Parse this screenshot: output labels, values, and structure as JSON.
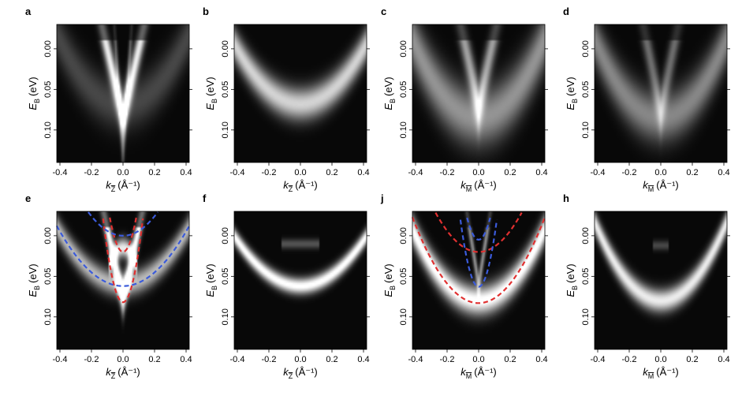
{
  "chart_data": [
    {
      "panel": "a",
      "type": "heatmap",
      "xlabel": "k",
      "x_sub": "Z",
      "x_unit": "(Å⁻¹)",
      "ylabel": "E",
      "y_sub": "B",
      "y_unit": "(eV)",
      "xlim": [
        -0.42,
        0.42
      ],
      "ylim": [
        -0.03,
        0.14
      ],
      "xticks": [
        "-0.4",
        "-0.2",
        "0.0",
        "0.2",
        "0.4"
      ],
      "yticks": [
        "0.00",
        "0.05",
        "0.10"
      ],
      "bands": [
        {
          "shape": "v",
          "kf": 0.1,
          "bottom": 0.085,
          "intensity": 0.9,
          "width": 0.025
        },
        {
          "shape": "v",
          "kf": 0.045,
          "bottom": 0.13,
          "intensity": 0.35,
          "width": 0.03
        },
        {
          "shape": "cup",
          "a": 0.5,
          "c": 0.07,
          "intensity": 0.25,
          "width": 0.03
        }
      ]
    },
    {
      "panel": "b",
      "type": "heatmap",
      "xlabel": "k",
      "x_sub": "Z",
      "x_unit": "(Å⁻¹)",
      "ylabel": "E",
      "y_sub": "B",
      "y_unit": "(eV)",
      "xlim": [
        -0.42,
        0.42
      ],
      "ylim": [
        -0.03,
        0.14
      ],
      "xticks": [
        "-0.4",
        "-0.2",
        "0.0",
        "0.2",
        "0.4"
      ],
      "yticks": [
        "0.00",
        "0.05",
        "0.10"
      ],
      "bands": [
        {
          "shape": "cup",
          "a": 0.42,
          "c": 0.068,
          "intensity": 0.8,
          "width": 0.02
        }
      ]
    },
    {
      "panel": "c",
      "type": "heatmap",
      "xlabel": "k",
      "x_sub": "M",
      "x_unit": "(Å⁻¹)",
      "ylabel": "E",
      "y_sub": "B",
      "y_unit": "(eV)",
      "xlim": [
        -0.42,
        0.42
      ],
      "ylim": [
        -0.03,
        0.14
      ],
      "xticks": [
        "-0.4",
        "-0.2",
        "0.0",
        "0.2",
        "0.4"
      ],
      "yticks": [
        "0.00",
        "0.05",
        "0.10"
      ],
      "bands": [
        {
          "shape": "cup",
          "a": 0.55,
          "c": 0.085,
          "intensity": 0.55,
          "width": 0.035
        },
        {
          "shape": "v",
          "kf": 0.08,
          "bottom": 0.07,
          "intensity": 0.6,
          "width": 0.03
        }
      ]
    },
    {
      "panel": "d",
      "type": "heatmap",
      "xlabel": "k",
      "x_sub": "M",
      "x_unit": "(Å⁻¹)",
      "ylabel": "E",
      "y_sub": "B",
      "y_unit": "(eV)",
      "xlim": [
        -0.42,
        0.42
      ],
      "ylim": [
        -0.03,
        0.14
      ],
      "xticks": [
        "-0.4",
        "-0.2",
        "0.0",
        "0.2",
        "0.4"
      ],
      "yticks": [
        "0.00",
        "0.05",
        "0.10"
      ],
      "bands": [
        {
          "shape": "cup",
          "a": 0.55,
          "c": 0.085,
          "intensity": 0.5,
          "width": 0.03
        },
        {
          "shape": "v",
          "kf": 0.08,
          "bottom": 0.075,
          "intensity": 0.4,
          "width": 0.03
        }
      ]
    },
    {
      "panel": "e",
      "type": "heatmap",
      "xlabel": "k",
      "x_sub": "Z",
      "x_unit": "(Å⁻¹)",
      "ylabel": "E",
      "y_sub": "B",
      "y_unit": "(eV)",
      "xlim": [
        -0.42,
        0.42
      ],
      "ylim": [
        -0.03,
        0.14
      ],
      "xticks": [
        "-0.4",
        "-0.2",
        "0.0",
        "0.2",
        "0.4"
      ],
      "yticks": [
        "0.00",
        "0.05",
        "0.10"
      ],
      "bands": [
        {
          "shape": "v",
          "kf": 0.09,
          "bottom": 0.08,
          "intensity": 1.0,
          "width": 0.02
        },
        {
          "shape": "cup",
          "a": 0.4,
          "c": 0.06,
          "intensity": 0.7,
          "width": 0.015
        },
        {
          "shape": "cap",
          "x0": 0.0,
          "y0": 0.015,
          "half": 0.09,
          "intensity": 0.9,
          "width": 0.012
        }
      ],
      "overlays": [
        {
          "color": "#e03030",
          "kind": "parabola",
          "c": 0.082,
          "a": 6.5
        },
        {
          "color": "#e03030",
          "kind": "parabola_up",
          "c": 0.02,
          "a": 6.0
        },
        {
          "color": "#3b5bdb",
          "kind": "parabola",
          "c": 0.062,
          "a": 0.42
        },
        {
          "color": "#3b5bdb",
          "kind": "parabola_up",
          "c": 0.0,
          "a": 0.6
        }
      ]
    },
    {
      "panel": "f",
      "type": "heatmap",
      "xlabel": "k",
      "x_sub": "Z",
      "x_unit": "(Å⁻¹)",
      "ylabel": "E",
      "y_sub": "B",
      "y_unit": "(eV)",
      "xlim": [
        -0.42,
        0.42
      ],
      "ylim": [
        -0.03,
        0.14
      ],
      "xticks": [
        "-0.4",
        "-0.2",
        "0.0",
        "0.2",
        "0.4"
      ],
      "yticks": [
        "0.00",
        "0.05",
        "0.10"
      ],
      "bands": [
        {
          "shape": "cup",
          "a": 0.35,
          "c": 0.062,
          "intensity": 1.0,
          "width": 0.01
        },
        {
          "shape": "flat",
          "y0": 0.01,
          "half": 0.12,
          "intensity": 0.3,
          "width": 0.006
        }
      ]
    },
    {
      "panel": "j",
      "type": "heatmap",
      "xlabel": "k",
      "x_sub": "M",
      "x_unit": "(Å⁻¹)",
      "ylabel": "E",
      "y_sub": "B",
      "y_unit": "(eV)",
      "xlim": [
        -0.42,
        0.42
      ],
      "ylim": [
        -0.03,
        0.14
      ],
      "xticks": [
        "-0.4",
        "-0.2",
        "0.0",
        "0.2",
        "0.4"
      ],
      "yticks": [
        "0.00",
        "0.05",
        "0.10"
      ],
      "bands": [
        {
          "shape": "cup",
          "a": 0.5,
          "c": 0.08,
          "intensity": 1.0,
          "width": 0.018
        },
        {
          "shape": "v",
          "kf": 0.05,
          "bottom": 0.06,
          "intensity": 0.55,
          "width": 0.015
        }
      ],
      "overlays": [
        {
          "color": "#e03030",
          "kind": "parabola",
          "c": 0.083,
          "a": 0.6
        },
        {
          "color": "#e03030",
          "kind": "parabola_up",
          "c": 0.02,
          "a": 0.65
        },
        {
          "color": "#3b5bdb",
          "kind": "parabola",
          "c": 0.063,
          "a": 6.2
        },
        {
          "color": "#3b5bdb",
          "kind": "parabola_up",
          "c": 0.005,
          "a": 5.0
        }
      ]
    },
    {
      "panel": "h",
      "type": "heatmap",
      "xlabel": "k",
      "x_sub": "M",
      "x_unit": "(Å⁻¹)",
      "ylabel": "E",
      "y_sub": "B",
      "y_unit": "(eV)",
      "xlim": [
        -0.42,
        0.42
      ],
      "ylim": [
        -0.03,
        0.14
      ],
      "xticks": [
        "-0.4",
        "-0.2",
        "0.0",
        "0.2",
        "0.4"
      ],
      "yticks": [
        "0.00",
        "0.05",
        "0.10"
      ],
      "bands": [
        {
          "shape": "cup",
          "a": 0.55,
          "c": 0.08,
          "intensity": 0.9,
          "width": 0.014
        },
        {
          "shape": "flat",
          "y0": 0.012,
          "half": 0.05,
          "intensity": 0.25,
          "width": 0.006
        }
      ]
    }
  ]
}
